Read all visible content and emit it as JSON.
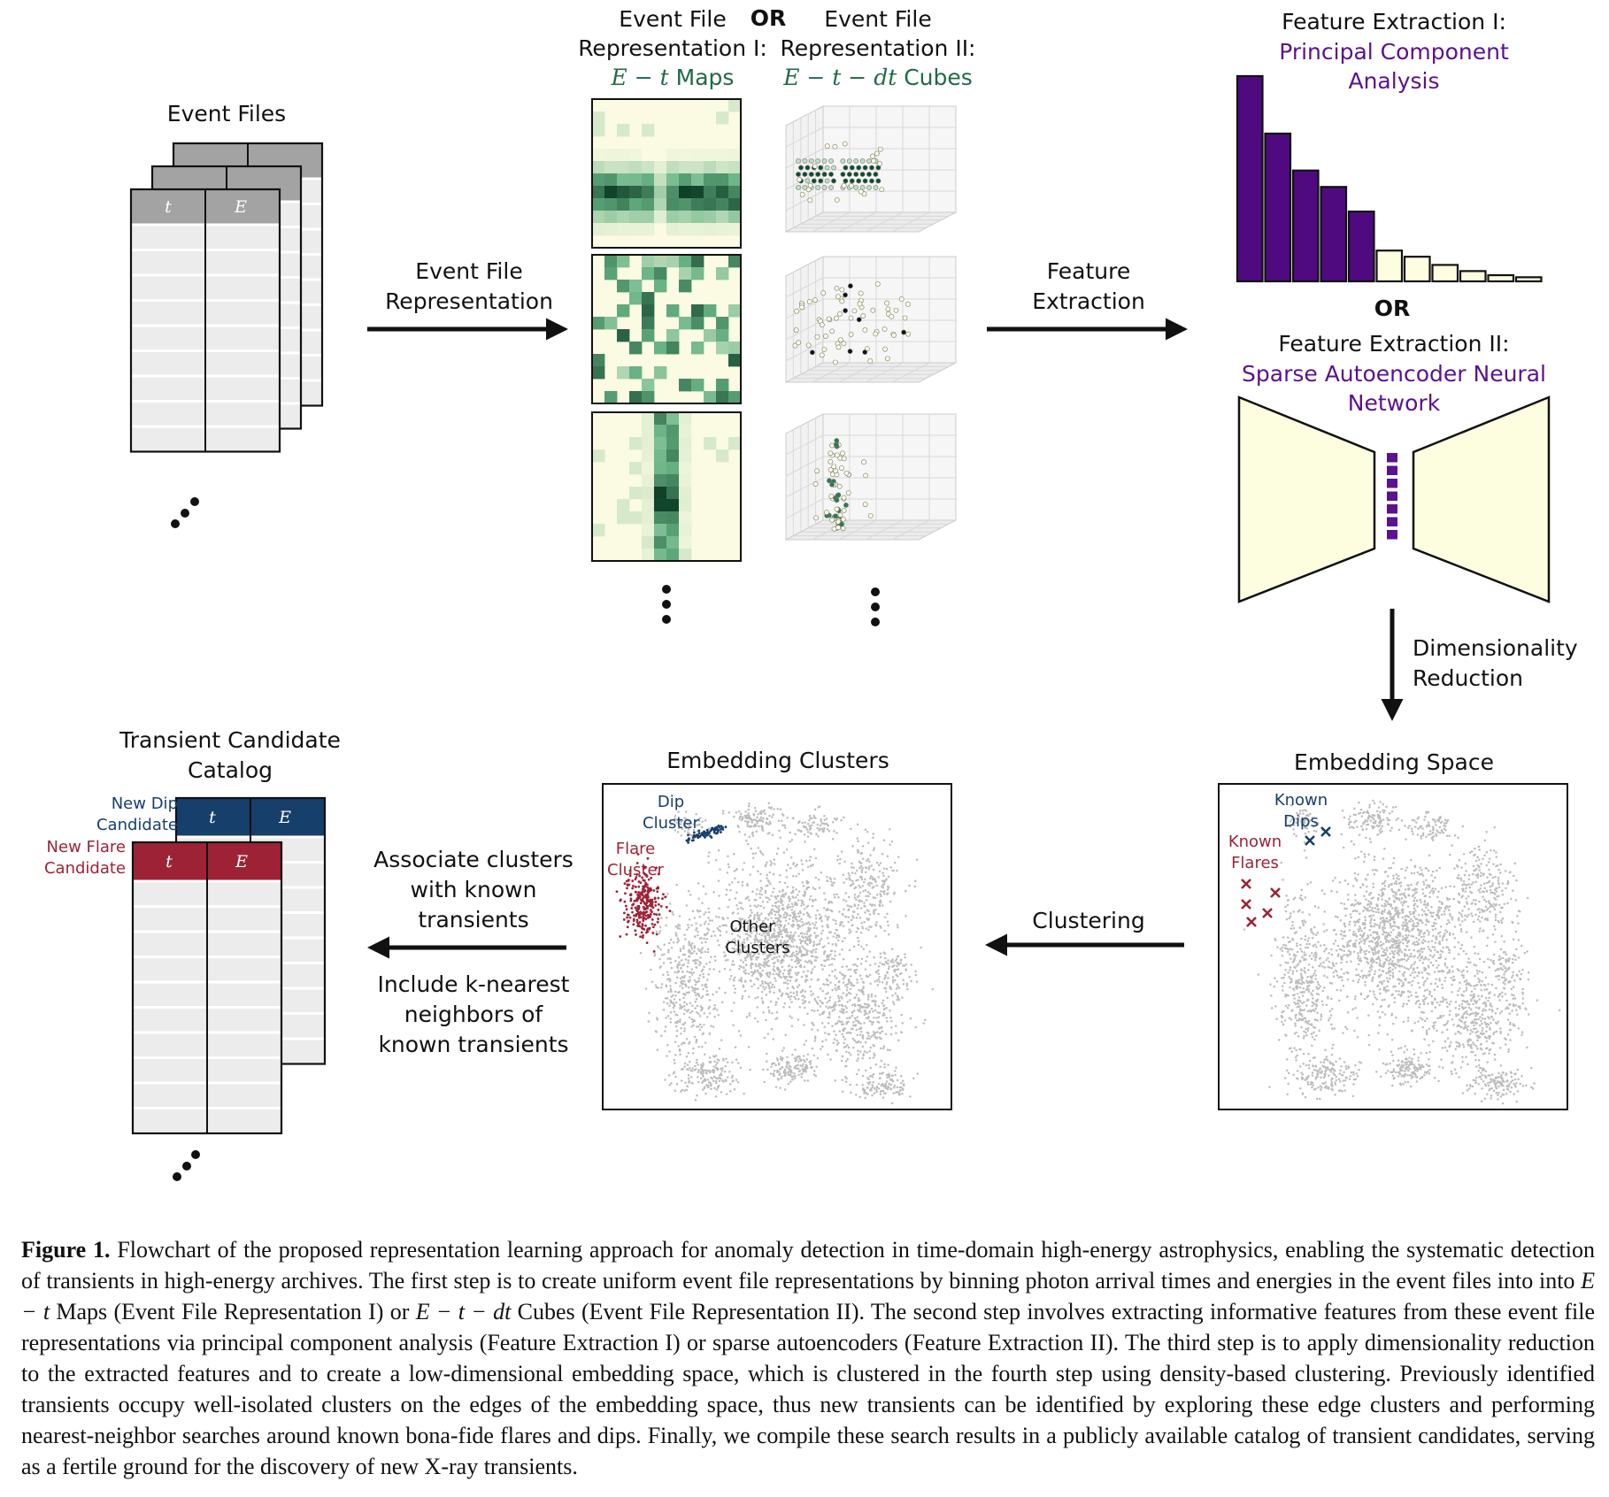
{
  "event_files": {
    "title": "Event Files",
    "col_t": "t",
    "col_e": "E"
  },
  "representation": {
    "title_rep1_line1": "Event File",
    "title_rep1_line2": "Representation I:",
    "title_rep1_math": "E − t",
    "title_rep1_suffix": "Maps",
    "or_top": "OR",
    "title_rep2_line1": "Event File",
    "title_rep2_line2": "Representation II:",
    "title_rep2_math": "E − t − dt",
    "title_rep2_suffix": "Cubes"
  },
  "arrows": {
    "event_file_rep_line1": "Event File",
    "event_file_rep_line2": "Representation",
    "feature_extraction_line1": "Feature",
    "feature_extraction_line2": "Extraction",
    "dim_red_line1": "Dimensionality",
    "dim_red_line2": "Reduction",
    "clustering": "Clustering",
    "associate_line1": "Associate clusters",
    "associate_line2": "with known",
    "associate_line3": "transients",
    "include_line1": "Include k-nearest",
    "include_line2": "neighbors of",
    "include_line3": "known transients"
  },
  "feature_extraction": {
    "fe1_line1": "Feature Extraction I:",
    "fe1_line2": "Principal Component",
    "fe1_line3": "Analysis",
    "or_mid": "OR",
    "fe2_line1": "Feature Extraction II:",
    "fe2_line2": "Sparse Autoencoder Neural",
    "fe2_line3": "Network"
  },
  "pca_bars": {
    "values": [
      100,
      72,
      54,
      46,
      34,
      15,
      12,
      8,
      5,
      3,
      2
    ],
    "highlight_count": 5,
    "color_strong": "#4f0a80",
    "color_light": "#fdfde0"
  },
  "embedding_space": {
    "title": "Embedding Space",
    "known_dips_line1": "Known",
    "known_dips_line2": "Dips",
    "known_flares_line1": "Known",
    "known_flares_line2": "Flares"
  },
  "embedding_clusters": {
    "title": "Embedding Clusters",
    "dip_line1": "Dip",
    "dip_line2": "Cluster",
    "flare_line1": "Flare",
    "flare_line2": "Cluster",
    "other_line1": "Other",
    "other_line2": "Clusters"
  },
  "catalog": {
    "title_line1": "Transient Candidate",
    "title_line2": "Catalog",
    "new_dip_line1": "New Dip",
    "new_dip_line2": "Candidate",
    "new_flare_line1": "New Flare",
    "new_flare_line2": "Candidate",
    "col_t": "t",
    "col_e": "E"
  },
  "colors": {
    "green_dark": "#0b3b24",
    "green_light": "#fafbe2",
    "purple": "#5b1190",
    "blue": "#173f6c",
    "red": "#9e2236",
    "gray_header": "#a3a3a3",
    "gray_cell": "#ececec"
  },
  "caption": {
    "label": "Figure 1.",
    "s1": " Flowchart of the proposed representation learning approach for anomaly detection in time-domain high-energy astrophysics, enabling the systematic detection of transients in high-energy archives. The first step is to create uniform event file representations by binning photon arrival times and energies in the event files into into ",
    "m1": "E − t",
    "s2": " Maps (Event File Representation I) or ",
    "m2": "E − t − dt",
    "s3": " Cubes (Event File Representation II). The second step involves extracting informative features from these event file representations via principal component analysis (Feature Extraction I) or sparse autoencoders (Feature Extraction II). The third step is to apply dimensionality reduction to the extracted features and to create a low-dimensional embedding space, which is clustered in the fourth step using density-based clustering. Previously identified transients occupy well-isolated clusters on the edges of the embedding space, thus new transients can be identified by exploring these edge clusters and performing nearest-neighbor searches around known bona-fide flares and dips. Finally, we compile these search results in a publicly available catalog of transient candidates, serving as a fertile ground for the discovery of new X-ray transients."
  }
}
